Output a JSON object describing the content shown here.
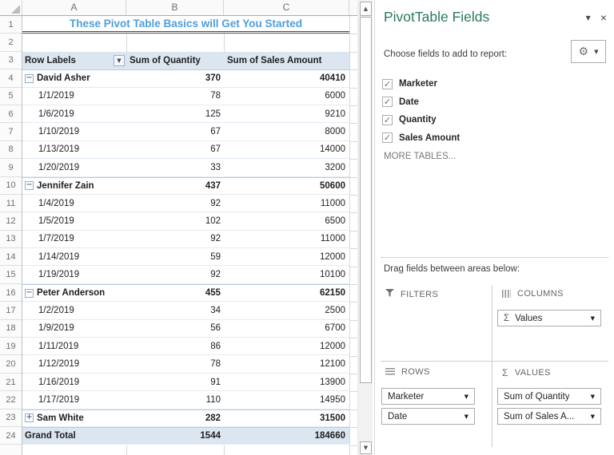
{
  "sheet": {
    "title": "These Pivot Table Basics will Get You Started",
    "column_letters": [
      "A",
      "B",
      "C"
    ],
    "row_numbers": [
      "1",
      "2",
      "3",
      "4",
      "5",
      "6",
      "7",
      "8",
      "9",
      "10",
      "11",
      "12",
      "13",
      "14",
      "15",
      "16",
      "17",
      "18",
      "19",
      "20",
      "21",
      "22",
      "23",
      "24"
    ],
    "pivot": {
      "header": [
        "Row Labels",
        "Sum of Quantity",
        "Sum of Sales Amount"
      ],
      "rows": [
        {
          "kind": "group",
          "icon": "minus",
          "label": "David Asher",
          "quantity": "370",
          "sales": "40410"
        },
        {
          "kind": "detail",
          "icon": null,
          "label": "1/1/2019",
          "quantity": "78",
          "sales": "6000"
        },
        {
          "kind": "detail",
          "icon": null,
          "label": "1/6/2019",
          "quantity": "125",
          "sales": "9210"
        },
        {
          "kind": "detail",
          "icon": null,
          "label": "1/10/2019",
          "quantity": "67",
          "sales": "8000"
        },
        {
          "kind": "detail",
          "icon": null,
          "label": "1/13/2019",
          "quantity": "67",
          "sales": "14000"
        },
        {
          "kind": "detail",
          "icon": null,
          "label": "1/20/2019",
          "quantity": "33",
          "sales": "3200"
        },
        {
          "kind": "group",
          "icon": "minus",
          "label": "Jennifer Zain",
          "quantity": "437",
          "sales": "50600"
        },
        {
          "kind": "detail",
          "icon": null,
          "label": "1/4/2019",
          "quantity": "92",
          "sales": "11000"
        },
        {
          "kind": "detail",
          "icon": null,
          "label": "1/5/2019",
          "quantity": "102",
          "sales": "6500"
        },
        {
          "kind": "detail",
          "icon": null,
          "label": "1/7/2019",
          "quantity": "92",
          "sales": "11000"
        },
        {
          "kind": "detail",
          "icon": null,
          "label": "1/14/2019",
          "quantity": "59",
          "sales": "12000"
        },
        {
          "kind": "detail",
          "icon": null,
          "label": "1/19/2019",
          "quantity": "92",
          "sales": "10100"
        },
        {
          "kind": "group",
          "icon": "minus",
          "label": "Peter Anderson",
          "quantity": "455",
          "sales": "62150"
        },
        {
          "kind": "detail",
          "icon": null,
          "label": "1/2/2019",
          "quantity": "34",
          "sales": "2500"
        },
        {
          "kind": "detail",
          "icon": null,
          "label": "1/9/2019",
          "quantity": "56",
          "sales": "6700"
        },
        {
          "kind": "detail",
          "icon": null,
          "label": "1/11/2019",
          "quantity": "86",
          "sales": "12000"
        },
        {
          "kind": "detail",
          "icon": null,
          "label": "1/12/2019",
          "quantity": "78",
          "sales": "12100"
        },
        {
          "kind": "detail",
          "icon": null,
          "label": "1/16/2019",
          "quantity": "91",
          "sales": "13900"
        },
        {
          "kind": "detail",
          "icon": null,
          "label": "1/17/2019",
          "quantity": "110",
          "sales": "14950"
        },
        {
          "kind": "group",
          "icon": "plus",
          "label": "Sam White",
          "quantity": "282",
          "sales": "31500"
        },
        {
          "kind": "grand",
          "icon": null,
          "label": "Grand Total",
          "quantity": "1544",
          "sales": "184660"
        }
      ]
    }
  },
  "panel": {
    "title": "PivotTable Fields",
    "choose_label": "Choose fields to add to report:",
    "fields": [
      {
        "label": "Marketer",
        "checked": true
      },
      {
        "label": "Date",
        "checked": true
      },
      {
        "label": "Quantity",
        "checked": true
      },
      {
        "label": "Sales Amount",
        "checked": true
      }
    ],
    "more_tables": "MORE TABLES...",
    "drag_label": "Drag fields between areas below:",
    "areas": {
      "filters": {
        "label": "FILTERS",
        "items": []
      },
      "columns": {
        "label": "COLUMNS",
        "items": [
          {
            "icon": "sigma",
            "label": "Values"
          }
        ]
      },
      "rows": {
        "label": "ROWS",
        "items": [
          {
            "label": "Marketer"
          },
          {
            "label": "Date"
          }
        ]
      },
      "values": {
        "label": "VALUES",
        "items": [
          {
            "label": "Sum of Quantity"
          },
          {
            "label": "Sum of Sales A..."
          }
        ]
      }
    }
  },
  "colors": {
    "pane_title_green": "#2B7A57",
    "sheet_title_blue": "#4DA0DC",
    "pivot_header_fill": "#DCE6F1"
  }
}
